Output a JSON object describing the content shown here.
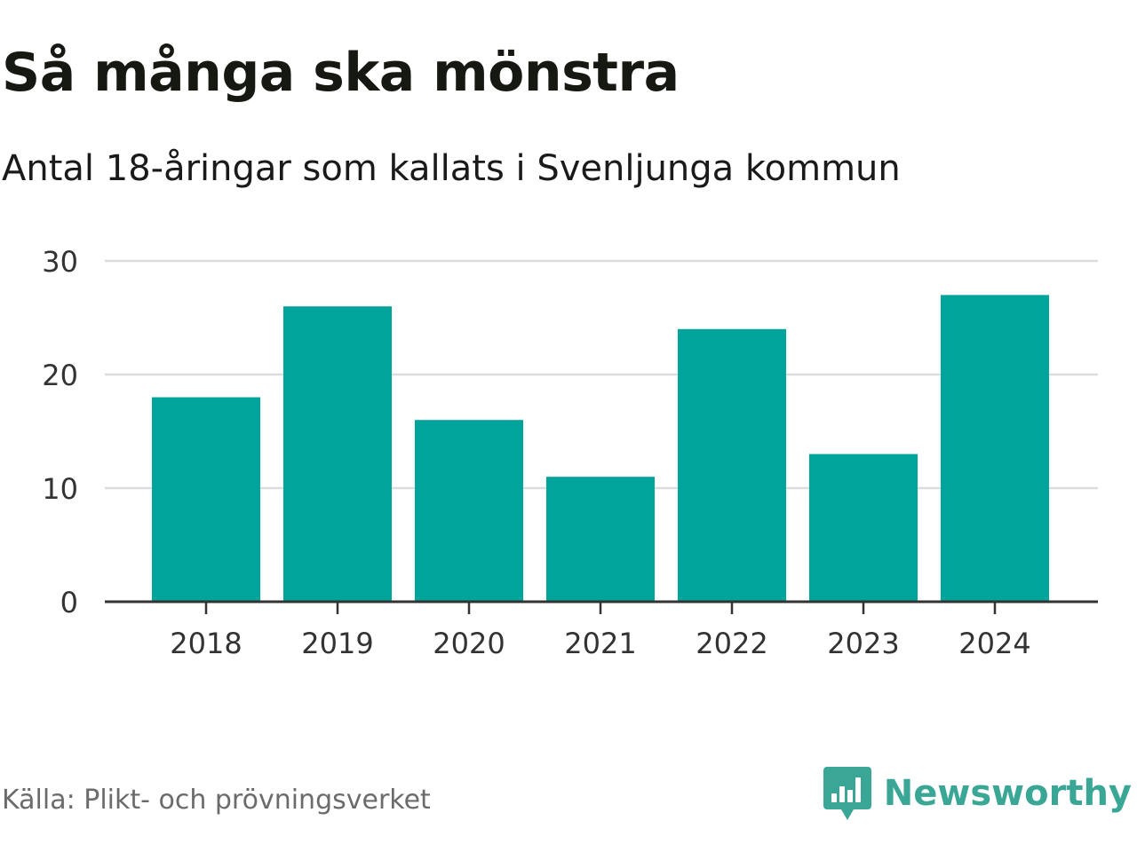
{
  "header": {
    "title": "Så många ska mönstra",
    "subtitle": "Antal 18-åringar som kallats i Svenljunga kommun"
  },
  "footer": {
    "source": "Källa: Plikt- och prövningsverket",
    "brand": "Newsworthy",
    "brand_icon": "newsworthy-chart-logo-icon"
  },
  "colors": {
    "bar": "#00A49A",
    "grid": "#dcdcdc",
    "axis": "#333333",
    "brand": "#3aa796"
  },
  "chart_data": {
    "type": "bar",
    "title": "Så många ska mönstra",
    "subtitle": "Antal 18-åringar som kallats i Svenljunga kommun",
    "categories": [
      "2018",
      "2019",
      "2020",
      "2021",
      "2022",
      "2023",
      "2024"
    ],
    "values": [
      18,
      26,
      16,
      11,
      24,
      13,
      27
    ],
    "ylim": [
      0,
      30
    ],
    "yticks": [
      "0",
      "10",
      "20",
      "30"
    ],
    "xlabel": "",
    "ylabel": "",
    "grid": true,
    "legend": "none"
  }
}
